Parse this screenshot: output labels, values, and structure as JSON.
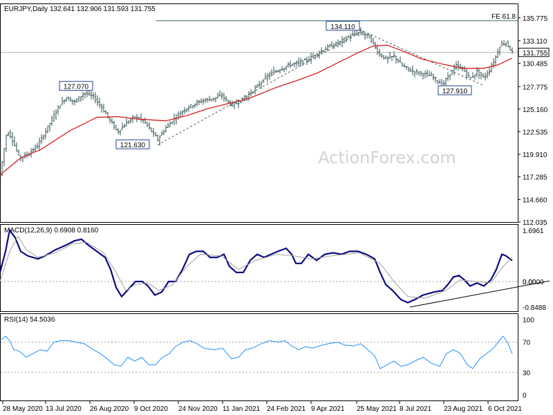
{
  "chart_data": [
    {
      "type": "candlestick",
      "symbol": "EURJPY",
      "timeframe": "Daily",
      "header": "EURJPY,Daily  132.641 132.906 131.593 131.755",
      "y_ticks": [
        "135.775",
        "133.110",
        "131.755",
        "130.485",
        "127.775",
        "125.160",
        "122.535",
        "119.910",
        "117.285",
        "114.660",
        "112.035"
      ],
      "ylim": [
        112.035,
        136.4
      ],
      "current_price": "131.755",
      "fib_label": "FE 61.8",
      "fib_level": 135.45,
      "annotations": [
        "127.070",
        "121.630",
        "134.110",
        "127.910"
      ],
      "watermark": "ActionForex.com",
      "x_ticks": [
        "28 May 2020",
        "13 Jul 2020",
        "26 Aug 2020",
        "9 Oct 2020",
        "24 Nov 2020",
        "11 Jan 2021",
        "24 Feb 2021",
        "9 Apr 2021",
        "25 May 2021",
        "8 Jul 2021",
        "23 Aug 2021",
        "6 Oct 2021"
      ],
      "price_path": [
        [
          0,
          117.5
        ],
        [
          10,
          122.6
        ],
        [
          16,
          122.0
        ],
        [
          28,
          119.5
        ],
        [
          40,
          119.9
        ],
        [
          55,
          121.0
        ],
        [
          70,
          123.2
        ],
        [
          85,
          125.5
        ],
        [
          95,
          126.5
        ],
        [
          108,
          126.0
        ],
        [
          122,
          127.07
        ],
        [
          135,
          126.6
        ],
        [
          145,
          125.6
        ],
        [
          158,
          124.0
        ],
        [
          170,
          122.5
        ],
        [
          182,
          123.5
        ],
        [
          195,
          124.3
        ],
        [
          208,
          123.8
        ],
        [
          218,
          122.7
        ],
        [
          228,
          121.63
        ],
        [
          240,
          123.0
        ],
        [
          255,
          124.3
        ],
        [
          268,
          125.2
        ],
        [
          282,
          125.8
        ],
        [
          295,
          126.2
        ],
        [
          310,
          126.4
        ],
        [
          320,
          126.8
        ],
        [
          335,
          125.6
        ],
        [
          350,
          126.2
        ],
        [
          365,
          127.2
        ],
        [
          380,
          128.5
        ],
        [
          392,
          129.3
        ],
        [
          405,
          129.8
        ],
        [
          418,
          130.3
        ],
        [
          430,
          130.5
        ],
        [
          445,
          130.9
        ],
        [
          460,
          131.7
        ],
        [
          475,
          132.4
        ],
        [
          490,
          132.9
        ],
        [
          505,
          133.6
        ],
        [
          520,
          134.11
        ],
        [
          535,
          133.5
        ],
        [
          548,
          131.6
        ],
        [
          558,
          131.0
        ],
        [
          570,
          131.3
        ],
        [
          582,
          130.2
        ],
        [
          595,
          129.6
        ],
        [
          610,
          129.3
        ],
        [
          625,
          129.0
        ],
        [
          640,
          127.91
        ],
        [
          650,
          129.2
        ],
        [
          660,
          130.2
        ],
        [
          670,
          129.8
        ],
        [
          680,
          128.7
        ],
        [
          690,
          129.5
        ],
        [
          700,
          128.8
        ],
        [
          708,
          129.7
        ],
        [
          716,
          131.0
        ],
        [
          724,
          132.7
        ],
        [
          732,
          132.9
        ],
        [
          741,
          131.755
        ]
      ],
      "ma_path": [
        [
          0,
          117.5
        ],
        [
          30,
          119.5
        ],
        [
          60,
          120.5
        ],
        [
          100,
          122.6
        ],
        [
          140,
          124.2
        ],
        [
          170,
          124.3
        ],
        [
          200,
          124.0
        ],
        [
          240,
          123.8
        ],
        [
          270,
          124.4
        ],
        [
          300,
          125.2
        ],
        [
          330,
          125.8
        ],
        [
          360,
          126.4
        ],
        [
          400,
          127.7
        ],
        [
          430,
          128.5
        ],
        [
          460,
          129.4
        ],
        [
          490,
          130.6
        ],
        [
          520,
          131.8
        ],
        [
          540,
          132.5
        ],
        [
          560,
          132.6
        ],
        [
          580,
          132.0
        ],
        [
          610,
          131.0
        ],
        [
          640,
          130.4
        ],
        [
          670,
          129.9
        ],
        [
          700,
          129.9
        ],
        [
          720,
          130.3
        ],
        [
          741,
          131.1
        ]
      ]
    },
    {
      "type": "line",
      "title": "MACD(12,26,9) 0.6908 0.8160",
      "y_ticks": [
        "1.6961",
        "0.00",
        "0.0000",
        "-0.8488"
      ],
      "ylim": [
        -0.8488,
        1.6961
      ],
      "series": [
        {
          "role": "macd",
          "color": "#0a0a80",
          "points": [
            [
              0,
              0.3
            ],
            [
              8,
              1.0
            ],
            [
              14,
              1.7
            ],
            [
              22,
              1.45
            ],
            [
              30,
              1.0
            ],
            [
              40,
              0.85
            ],
            [
              55,
              0.75
            ],
            [
              65,
              0.85
            ],
            [
              80,
              1.05
            ],
            [
              95,
              1.2
            ],
            [
              108,
              1.35
            ],
            [
              118,
              1.4
            ],
            [
              128,
              1.2
            ],
            [
              140,
              1.0
            ],
            [
              152,
              0.8
            ],
            [
              160,
              0.4
            ],
            [
              168,
              -0.2
            ],
            [
              176,
              -0.5
            ],
            [
              186,
              -0.25
            ],
            [
              196,
              0.0
            ],
            [
              206,
              0.0
            ],
            [
              214,
              -0.15
            ],
            [
              224,
              -0.45
            ],
            [
              234,
              -0.35
            ],
            [
              244,
              0.0
            ],
            [
              254,
              0.0
            ],
            [
              264,
              0.4
            ],
            [
              274,
              0.9
            ],
            [
              284,
              1.0
            ],
            [
              294,
              1.0
            ],
            [
              304,
              0.8
            ],
            [
              314,
              0.8
            ],
            [
              324,
              0.9
            ],
            [
              332,
              0.5
            ],
            [
              342,
              0.3
            ],
            [
              352,
              0.3
            ],
            [
              362,
              0.7
            ],
            [
              372,
              0.9
            ],
            [
              382,
              0.8
            ],
            [
              392,
              0.9
            ],
            [
              402,
              1.0
            ],
            [
              414,
              1.1
            ],
            [
              422,
              0.9
            ],
            [
              428,
              0.6
            ],
            [
              436,
              0.6
            ],
            [
              446,
              0.9
            ],
            [
              458,
              0.7
            ],
            [
              470,
              0.9
            ],
            [
              482,
              0.95
            ],
            [
              494,
              0.9
            ],
            [
              506,
              1.0
            ],
            [
              518,
              1.0
            ],
            [
              530,
              0.9
            ],
            [
              542,
              0.75
            ],
            [
              550,
              0.3
            ],
            [
              558,
              -0.1
            ],
            [
              568,
              -0.3
            ],
            [
              580,
              -0.6
            ],
            [
              590,
              -0.7
            ],
            [
              600,
              -0.6
            ],
            [
              612,
              -0.45
            ],
            [
              628,
              -0.35
            ],
            [
              640,
              -0.3
            ],
            [
              648,
              -0.1
            ],
            [
              656,
              0.15
            ],
            [
              664,
              0.2
            ],
            [
              672,
              0.05
            ],
            [
              680,
              -0.15
            ],
            [
              690,
              -0.05
            ],
            [
              700,
              -0.15
            ],
            [
              710,
              0.05
            ],
            [
              718,
              0.4
            ],
            [
              726,
              0.9
            ],
            [
              732,
              0.85
            ],
            [
              741,
              0.6908
            ]
          ]
        },
        {
          "role": "signal",
          "color": "#a0a0a0",
          "points": [
            [
              0,
              0.0
            ],
            [
              14,
              1.0
            ],
            [
              26,
              1.5
            ],
            [
              38,
              1.05
            ],
            [
              55,
              0.8
            ],
            [
              80,
              0.95
            ],
            [
              105,
              1.25
            ],
            [
              125,
              1.3
            ],
            [
              150,
              0.95
            ],
            [
              168,
              0.3
            ],
            [
              182,
              -0.3
            ],
            [
              196,
              -0.1
            ],
            [
              214,
              -0.05
            ],
            [
              230,
              -0.3
            ],
            [
              250,
              -0.1
            ],
            [
              270,
              0.5
            ],
            [
              290,
              0.9
            ],
            [
              320,
              0.85
            ],
            [
              345,
              0.4
            ],
            [
              370,
              0.7
            ],
            [
              400,
              0.9
            ],
            [
              425,
              0.85
            ],
            [
              450,
              0.75
            ],
            [
              480,
              0.85
            ],
            [
              520,
              0.95
            ],
            [
              550,
              0.6
            ],
            [
              570,
              0.0
            ],
            [
              590,
              -0.5
            ],
            [
              615,
              -0.55
            ],
            [
              645,
              -0.3
            ],
            [
              665,
              0.05
            ],
            [
              690,
              0.0
            ],
            [
              710,
              -0.05
            ],
            [
              728,
              0.5
            ],
            [
              741,
              0.816
            ]
          ]
        }
      ],
      "trendline": [
        [
          593,
          -0.8488
        ],
        [
          795,
          0.02
        ]
      ]
    },
    {
      "type": "line",
      "title": "RSI(14) 54.5036",
      "y_ticks": [
        "100",
        "70",
        "30",
        "0"
      ],
      "ylim": [
        0,
        100
      ],
      "series": [
        {
          "role": "rsi",
          "color": "#1e90ff",
          "points": [
            [
              0,
              72
            ],
            [
              8,
              78
            ],
            [
              14,
              72
            ],
            [
              20,
              60
            ],
            [
              28,
              58
            ],
            [
              38,
              50
            ],
            [
              48,
              55
            ],
            [
              58,
              60
            ],
            [
              68,
              58
            ],
            [
              78,
              70
            ],
            [
              88,
              72
            ],
            [
              100,
              72
            ],
            [
              110,
              70
            ],
            [
              122,
              68
            ],
            [
              135,
              60
            ],
            [
              145,
              55
            ],
            [
              155,
              48
            ],
            [
              165,
              40
            ],
            [
              175,
              38
            ],
            [
              185,
              50
            ],
            [
              195,
              45
            ],
            [
              205,
              50
            ],
            [
              215,
              40
            ],
            [
              225,
              40
            ],
            [
              235,
              50
            ],
            [
              245,
              55
            ],
            [
              255,
              65
            ],
            [
              265,
              70
            ],
            [
              275,
              72
            ],
            [
              285,
              68
            ],
            [
              295,
              62
            ],
            [
              310,
              60
            ],
            [
              322,
              62
            ],
            [
              335,
              48
            ],
            [
              345,
              50
            ],
            [
              355,
              60
            ],
            [
              365,
              62
            ],
            [
              378,
              68
            ],
            [
              390,
              72
            ],
            [
              402,
              70
            ],
            [
              412,
              72
            ],
            [
              422,
              65
            ],
            [
              432,
              60
            ],
            [
              442,
              64
            ],
            [
              452,
              62
            ],
            [
              462,
              65
            ],
            [
              475,
              68
            ],
            [
              488,
              70
            ],
            [
              500,
              66
            ],
            [
              512,
              65
            ],
            [
              522,
              68
            ],
            [
              532,
              60
            ],
            [
              542,
              52
            ],
            [
              550,
              35
            ],
            [
              560,
              40
            ],
            [
              570,
              45
            ],
            [
              580,
              38
            ],
            [
              590,
              40
            ],
            [
              600,
              45
            ],
            [
              612,
              50
            ],
            [
              624,
              42
            ],
            [
              636,
              38
            ],
            [
              646,
              55
            ],
            [
              656,
              60
            ],
            [
              666,
              55
            ],
            [
              676,
              40
            ],
            [
              684,
              35
            ],
            [
              694,
              48
            ],
            [
              704,
              55
            ],
            [
              714,
              62
            ],
            [
              722,
              72
            ],
            [
              728,
              78
            ],
            [
              734,
              70
            ],
            [
              741,
              54.5
            ]
          ]
        }
      ]
    }
  ]
}
